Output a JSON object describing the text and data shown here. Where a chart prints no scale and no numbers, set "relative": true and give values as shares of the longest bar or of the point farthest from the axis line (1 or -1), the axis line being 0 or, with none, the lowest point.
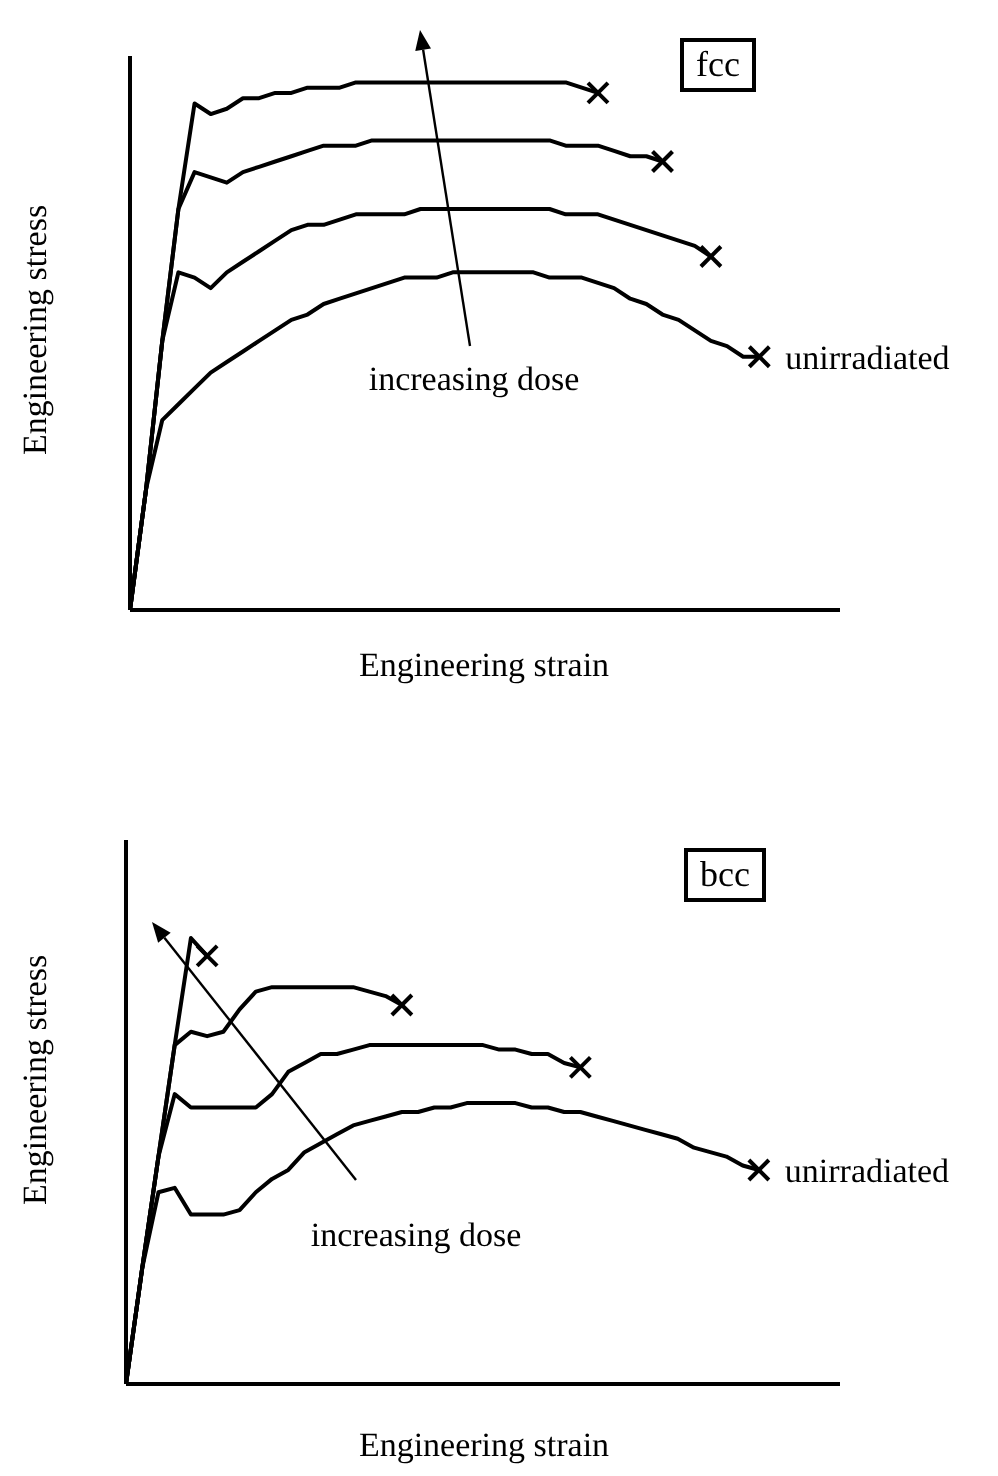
{
  "chart_data": [
    {
      "type": "line",
      "xlabel": "Engineering strain",
      "ylabel": "Engineering stress",
      "annotations": [
        "fcc",
        "increasing dose"
      ],
      "relative": true,
      "categories": [
        null,
        null,
        null,
        null,
        null,
        null,
        null,
        null,
        null,
        null,
        null,
        null,
        null,
        null,
        null,
        null,
        null,
        null,
        null,
        null,
        null,
        null,
        null,
        null,
        null,
        null,
        null,
        null,
        null,
        null,
        null,
        null,
        null,
        null,
        null,
        null,
        null,
        null,
        null,
        null
      ],
      "series": [
        {
          "name": "unirradiated",
          "color": "#000000",
          "values": [
            0,
            0.23,
            0.36,
            0.39,
            0.42,
            0.45,
            0.47,
            0.49,
            0.51,
            0.53,
            0.55,
            0.56,
            0.58,
            0.59,
            0.6,
            0.61,
            0.62,
            0.63,
            0.63,
            0.63,
            0.64,
            0.64,
            0.64,
            0.64,
            0.64,
            0.64,
            0.63,
            0.63,
            0.63,
            0.62,
            0.61,
            0.59,
            0.58,
            0.56,
            0.55,
            0.53,
            0.51,
            0.5,
            0.48,
            0.48
          ]
        },
        {
          "color": "#000000",
          "values": [
            0,
            0.23,
            0.51,
            0.64,
            0.63,
            0.61,
            0.64,
            0.66,
            0.68,
            0.7,
            0.72,
            0.73,
            0.73,
            0.74,
            0.75,
            0.75,
            0.75,
            0.75,
            0.76,
            0.76,
            0.76,
            0.76,
            0.76,
            0.76,
            0.76,
            0.76,
            0.76,
            0.75,
            0.75,
            0.75,
            0.74,
            0.73,
            0.72,
            0.71,
            0.7,
            0.69,
            0.67,
            null,
            null,
            null
          ]
        },
        {
          "color": "#000000",
          "values": [
            0,
            0.23,
            0.51,
            0.76,
            0.83,
            0.82,
            0.81,
            0.83,
            0.84,
            0.85,
            0.86,
            0.87,
            0.88,
            0.88,
            0.88,
            0.89,
            0.89,
            0.89,
            0.89,
            0.89,
            0.89,
            0.89,
            0.89,
            0.89,
            0.89,
            0.89,
            0.89,
            0.88,
            0.88,
            0.88,
            0.87,
            0.86,
            0.86,
            0.85,
            null,
            null,
            null,
            null,
            null,
            null
          ]
        },
        {
          "color": "#000000",
          "values": [
            0,
            0.23,
            0.51,
            0.76,
            0.96,
            0.94,
            0.95,
            0.97,
            0.97,
            0.98,
            0.98,
            0.99,
            0.99,
            0.99,
            1,
            1,
            1,
            1,
            1,
            1,
            1,
            1,
            1,
            1,
            1,
            1,
            1,
            1,
            0.99,
            0.98,
            null,
            null,
            null,
            null,
            null,
            null,
            null,
            null,
            null,
            null
          ]
        }
      ]
    },
    {
      "type": "line",
      "xlabel": "Engineering strain",
      "ylabel": "Engineering stress",
      "annotations": [
        "bcc",
        "increasing dose"
      ],
      "relative": true,
      "categories": [
        null,
        null,
        null,
        null,
        null,
        null,
        null,
        null,
        null,
        null,
        null,
        null,
        null,
        null,
        null,
        null,
        null,
        null,
        null,
        null,
        null,
        null,
        null,
        null,
        null,
        null,
        null,
        null,
        null,
        null,
        null,
        null,
        null,
        null,
        null,
        null,
        null,
        null,
        null,
        null
      ],
      "series": [
        {
          "name": "unirradiated",
          "color": "#000000",
          "values": [
            0,
            0.26,
            0.43,
            0.44,
            0.38,
            0.38,
            0.38,
            0.39,
            0.43,
            0.46,
            0.48,
            0.52,
            0.54,
            0.56,
            0.58,
            0.59,
            0.6,
            0.61,
            0.61,
            0.62,
            0.62,
            0.63,
            0.63,
            0.63,
            0.63,
            0.62,
            0.62,
            0.61,
            0.61,
            0.6,
            0.59,
            0.58,
            0.57,
            0.56,
            0.55,
            0.53,
            0.52,
            0.51,
            0.49,
            0.48
          ]
        },
        {
          "color": "#000000",
          "values": [
            0,
            0.26,
            0.51,
            0.65,
            0.62,
            0.62,
            0.62,
            0.62,
            0.62,
            0.65,
            0.7,
            0.72,
            0.74,
            0.74,
            0.75,
            0.76,
            0.76,
            0.76,
            0.76,
            0.76,
            0.76,
            0.76,
            0.76,
            0.75,
            0.75,
            0.74,
            0.74,
            0.72,
            0.71,
            null,
            null,
            null,
            null,
            null,
            null,
            null,
            null,
            null,
            null,
            null
          ]
        },
        {
          "color": "#000000",
          "values": [
            0,
            0.26,
            0.51,
            0.76,
            0.79,
            0.78,
            0.79,
            0.84,
            0.88,
            0.89,
            0.89,
            0.89,
            0.89,
            0.89,
            0.89,
            0.88,
            0.87,
            0.85,
            null,
            null,
            null,
            null,
            null,
            null,
            null,
            null,
            null,
            null,
            null,
            null,
            null,
            null,
            null,
            null,
            null,
            null,
            null,
            null,
            null,
            null
          ]
        },
        {
          "color": "#000000",
          "values": [
            0,
            0.26,
            0.51,
            0.76,
            1,
            0.96,
            null,
            null,
            null,
            null,
            null,
            null,
            null,
            null,
            null,
            null,
            null,
            null,
            null,
            null,
            null,
            null,
            null,
            null,
            null,
            null,
            null,
            null,
            null,
            null,
            null,
            null,
            null,
            null,
            null,
            null,
            null,
            null,
            null,
            null
          ]
        }
      ]
    }
  ]
}
